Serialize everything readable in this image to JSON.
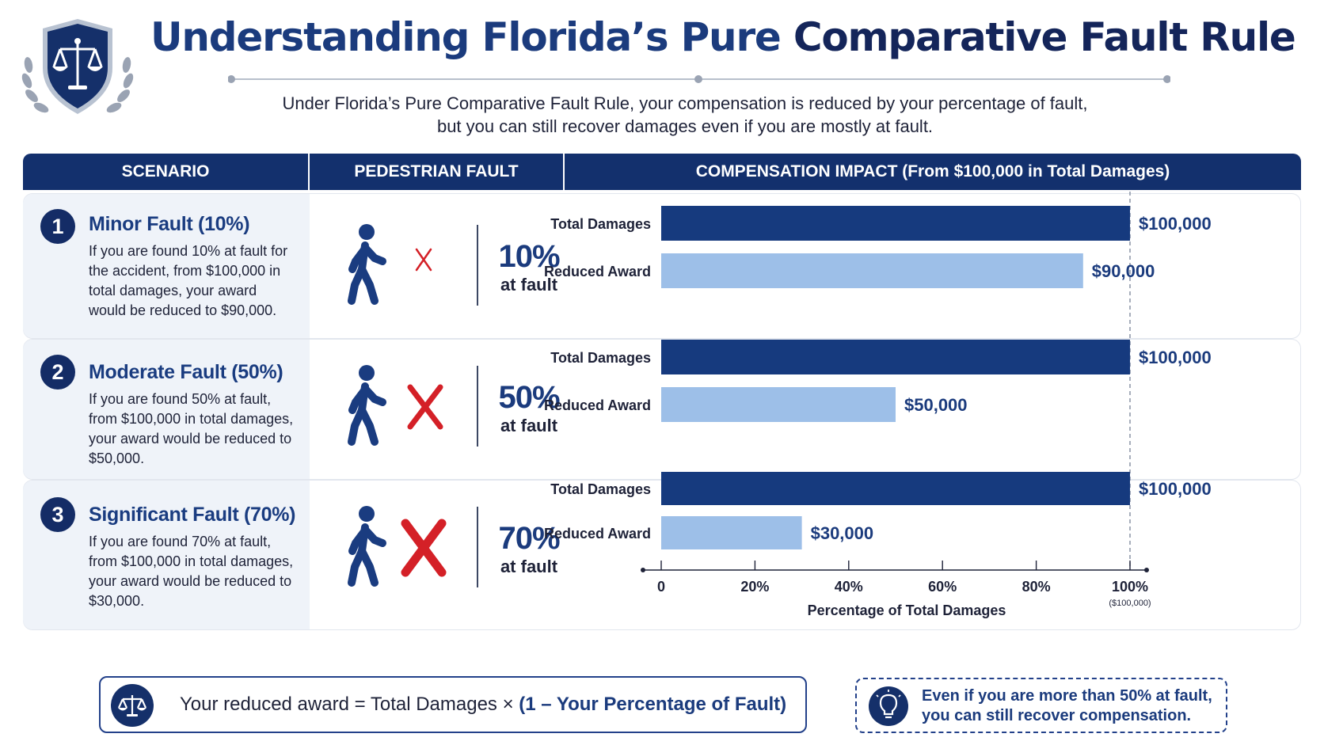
{
  "header": {
    "title_part1": "Understanding Florida’s Pure",
    "title_part2": "Comparative Fault Rule",
    "intro_line1": "Under Florida’s Pure Comparative Fault Rule, your compensation is reduced by your percentage of fault,",
    "intro_line2": "but you can still recover damages even if you are mostly at fault."
  },
  "table": {
    "col_scenario": "SCENARIO",
    "col_fault": "PEDESTRIAN FAULT",
    "col_impact": "COMPENSATION IMPACT (From $100,000 in Total Damages)"
  },
  "scenarios": [
    {
      "number": "1",
      "title": "Minor Fault (10%)",
      "desc": "If you are found 10% at fault for the accident, from $100,000 in total damages, your award would be reduced to $90,000.",
      "fault_pct": "10%",
      "fault_caption": "at fault"
    },
    {
      "number": "2",
      "title": "Moderate Fault (50%)",
      "desc": "If you are found 50% at fault, from $100,000 in total damages, your award would be reduced to $50,000.",
      "fault_pct": "50%",
      "fault_caption": "at fault"
    },
    {
      "number": "3",
      "title": "Significant Fault (70%)",
      "desc": "If you are found 70% at fault, from $100,000 in total damages, your award would be reduced to $30,000.",
      "fault_pct": "70%",
      "fault_caption": "at fault"
    }
  ],
  "chart_data": {
    "type": "bar",
    "orientation": "horizontal",
    "categories": [
      "Total Damages",
      "Reduced Award"
    ],
    "groups": [
      {
        "values": [
          100000,
          90000
        ],
        "labels": [
          "$100,000",
          "$90,000"
        ]
      },
      {
        "values": [
          100000,
          50000
        ],
        "labels": [
          "$100,000",
          "$50,000"
        ]
      },
      {
        "values": [
          100000,
          30000
        ],
        "labels": [
          "$100,000",
          "$30,000"
        ]
      }
    ],
    "xlim": [
      0,
      100000
    ],
    "xticks": [
      0,
      20000,
      40000,
      60000,
      80000,
      100000
    ],
    "xtick_labels": [
      "0",
      "20%",
      "40%",
      "60%",
      "80%",
      "100%"
    ],
    "xtick_sublabel": "($100,000)",
    "xlabel": "Percentage of Total Damages",
    "colors": {
      "total": "#163a7e",
      "reduced": "#9dbfe8"
    }
  },
  "footer": {
    "formula_lhs": "Your reduced award = Total Damages × ",
    "formula_rhs": "(1 – Your Percentage of Fault)",
    "tip_line1": "Even if you are more than 50% at fault,",
    "tip_line2": "you can still recover compensation."
  },
  "colors": {
    "navy": "#13306d",
    "accent": "#1b3b7d",
    "light_bar": "#9dbfe8",
    "red": "#d42027"
  }
}
